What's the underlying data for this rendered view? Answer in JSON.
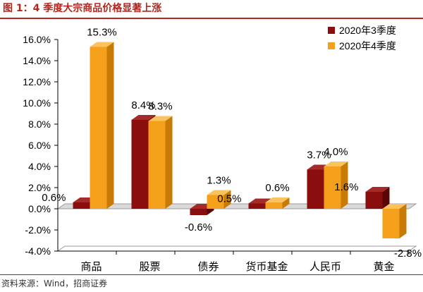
{
  "figure": {
    "title": "图 1：4 季度大宗商品价格显著上涨",
    "source": "资料来源：Wind，招商证券"
  },
  "colors": {
    "q3": "#8b0e0e",
    "q3_top": "#a52b2b",
    "q3_side": "#5a0606",
    "q4": "#f5a01a",
    "q4_top": "#fbc35e",
    "q4_side": "#c77a06",
    "accent": "#b3261e"
  },
  "chart_data": {
    "type": "bar",
    "categories": [
      "商品",
      "股票",
      "债券",
      "货币基金",
      "人民币",
      "黄金"
    ],
    "series": [
      {
        "name": "2020年3季度",
        "values": [
          0.6,
          8.4,
          -0.6,
          0.5,
          3.7,
          1.6
        ]
      },
      {
        "name": "2020年4季度",
        "values": [
          15.3,
          8.3,
          1.3,
          0.6,
          4.0,
          -2.8
        ]
      }
    ],
    "data_labels": [
      [
        "0.6%",
        "8.4%",
        "-0.6%",
        "0.5%",
        "3.7%",
        "1.6%"
      ],
      [
        "15.3%",
        "8.3%",
        "1.3%",
        "0.6%",
        "4.0%",
        "-2.8%"
      ]
    ],
    "y_ticks": [
      -4,
      -2,
      0,
      2,
      4,
      6,
      8,
      10,
      12,
      14,
      16
    ],
    "y_tick_labels": [
      "-4.0%",
      "-2.0%",
      "0.0%",
      "2.0%",
      "4.0%",
      "6.0%",
      "8.0%",
      "10.0%",
      "12.0%",
      "14.0%",
      "16.0%"
    ],
    "ylim": [
      -4,
      16
    ],
    "legend_position": "top-right",
    "grid": false,
    "style": "3d-clustered-column"
  }
}
